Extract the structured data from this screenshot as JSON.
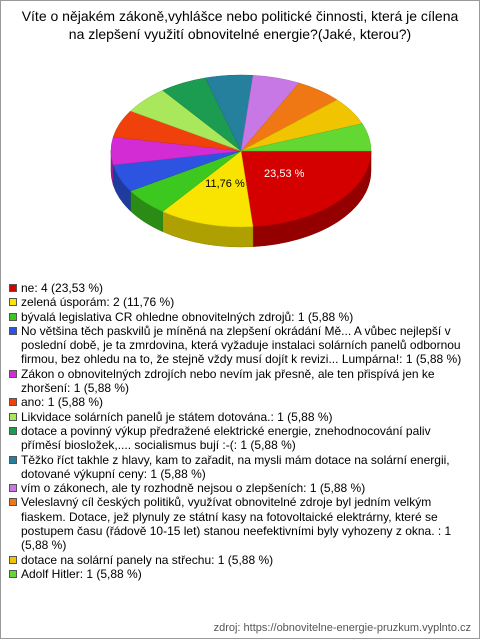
{
  "chart_data": {
    "type": "pie",
    "title": "Víte o nějakém zákoně,vyhlášce nebo politické činnosti, která je cílena na zlepšení využití obnovitelné energie?(Jaké, kterou?)",
    "categories": [
      "ne: 4 (23,53 %)",
      "zelená úsporám: 2 (11,76 %)",
      "bývalá legislativa CR ohledne obnovitelných zdrojů: 1 (5,88 %)",
      "No většina těch paskvilů je míněná na zlepšení okrádání Mě... A vůbec nejlepší v poslední době, je ta zmrdovina, která vyžaduje instalaci solárních panelů odbornou firmou, bez ohledu na to, že stejně vždy musí dojít k revizi... Lumpárna!: 1 (5,88 %)",
      "Zákon o obnovitelných zdrojích nebo nevím jak přesně, ale ten přispívá jen ke zhoršení: 1 (5,88 %)",
      "ano: 1 (5,88 %)",
      "Likvidace solárních panelů je státem dotována.: 1 (5,88 %)",
      "dotace a povinný výkup předražené elektrické energie, znehodnocování paliv příměsí biosložek,.... socialismus bují :-(: 1 (5,88 %)",
      "Těžko říct takhle z hlavy, kam to zařadit, na mysli mám dotace na solární energii, dotované výkupní ceny: 1 (5,88 %)",
      "vím o zákonech, ale ty rozhodně nejsou o zlepšeních: 1 (5,88 %)",
      "Veleslavný cíl českých politiků, využívat obnovitelné zdroje byl jedním velkým fiaskem. Dotace, jež plynuly ze státní kasy na fotovoltaické elektrárny, které se postupem času (řádově 10-15 let) stanou neefektivními byly vyhozeny z okna. : 1 (5,88 %)",
      "dotace na solární panely na střechu: 1 (5,88 %)",
      "Adolf Hitler: 1 (5,88 %)"
    ],
    "values": [
      23.53,
      11.76,
      5.88,
      5.88,
      5.88,
      5.88,
      5.88,
      5.88,
      5.88,
      5.88,
      5.88,
      5.88,
      5.88
    ],
    "value_labels": [
      "23,53 %",
      "11,76 %",
      null,
      null,
      null,
      null,
      null,
      null,
      null,
      null,
      null,
      null,
      null
    ],
    "colors": [
      "#d40000",
      "#f8e400",
      "#3cc81e",
      "#2c54e0",
      "#d42cd4",
      "#f0400c",
      "#a8e85a",
      "#1c9c50",
      "#24809c",
      "#c878e4",
      "#f07814",
      "#f0c400",
      "#64d832"
    ],
    "source": "zdroj: https://obnovitelne-energie-pruzkum.vyplnto.cz"
  }
}
